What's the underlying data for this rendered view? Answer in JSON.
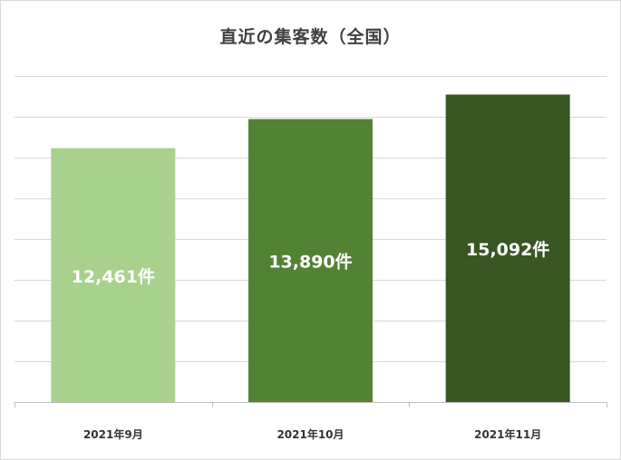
{
  "chart_data": {
    "type": "bar",
    "title": "直近の集客数（全国）",
    "categories": [
      "2021年9月",
      "2021年10月",
      "2021年11月"
    ],
    "values": [
      12461,
      13890,
      15092
    ],
    "data_labels": [
      "12,461件",
      "13,890件",
      "15,092件"
    ],
    "bar_colors": [
      "#a9d18e",
      "#548235",
      "#385723"
    ],
    "label_color": "#ffffff",
    "gridline_color": "#d9d9d9",
    "axis_color": "#bfbfbf",
    "grid": true,
    "ylim": [
      0,
      16000
    ],
    "yticks_shown": false,
    "legend": "none"
  }
}
